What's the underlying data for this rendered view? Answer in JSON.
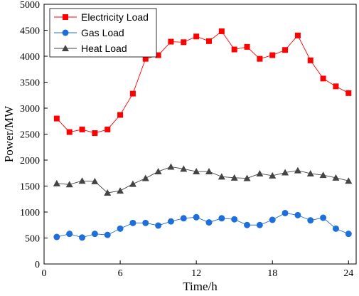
{
  "chart_data": {
    "type": "line",
    "title": "",
    "xlabel": "Time/h",
    "ylabel": "Power/MW",
    "xlim": [
      0,
      24.6
    ],
    "ylim": [
      0,
      5000
    ],
    "xticks": [
      0,
      6,
      12,
      18,
      24
    ],
    "yticks": [
      0,
      500,
      1000,
      1500,
      2000,
      2500,
      3000,
      3500,
      4000,
      4500,
      5000
    ],
    "grid": false,
    "legend_position": "top-left",
    "x": [
      1,
      2,
      3,
      4,
      5,
      6,
      7,
      8,
      9,
      10,
      11,
      12,
      13,
      14,
      15,
      16,
      17,
      18,
      19,
      20,
      21,
      22,
      23,
      24
    ],
    "series": [
      {
        "name": "Electricity Load",
        "color": "#ff0000",
        "marker": "square",
        "values": [
          2800,
          2540,
          2590,
          2520,
          2590,
          2870,
          3280,
          3950,
          4020,
          4280,
          4270,
          4380,
          4290,
          4480,
          4130,
          4180,
          3950,
          4020,
          4120,
          4400,
          3920,
          3570,
          3420,
          3290
        ]
      },
      {
        "name": "Gas Load",
        "color": "#1e6fd9",
        "marker": "circle",
        "values": [
          520,
          580,
          510,
          580,
          560,
          680,
          790,
          790,
          740,
          820,
          880,
          900,
          800,
          880,
          860,
          750,
          750,
          850,
          980,
          940,
          840,
          890,
          680,
          580
        ]
      },
      {
        "name": "Heat Load",
        "color": "#444444",
        "marker": "triangle",
        "values": [
          1550,
          1530,
          1600,
          1590,
          1370,
          1410,
          1540,
          1650,
          1780,
          1870,
          1830,
          1780,
          1780,
          1680,
          1660,
          1650,
          1740,
          1700,
          1760,
          1800,
          1740,
          1710,
          1660,
          1600
        ]
      }
    ]
  }
}
